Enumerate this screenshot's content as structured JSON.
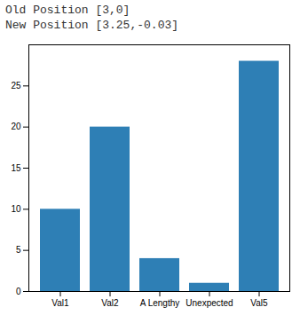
{
  "chart_data": {
    "type": "bar",
    "title": "Old Position [3,0]",
    "subtitle": "New Position [3.25,-0.03]",
    "categories": [
      "Val1",
      "Val2",
      "A Lengthy",
      "Unexpected",
      "Val5"
    ],
    "values": [
      10,
      20,
      4,
      1,
      28
    ],
    "color": "#2e7fb5",
    "ylim": [
      0,
      30
    ],
    "yticks": [
      0,
      5,
      10,
      15,
      20,
      25
    ],
    "grid": false
  }
}
